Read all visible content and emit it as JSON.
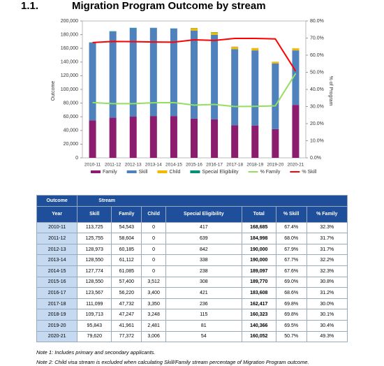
{
  "header": {
    "number": "1.1.",
    "title": "Migration Program Outcome by stream"
  },
  "chart_data": {
    "type": "bar-line",
    "y_label": "Outcome",
    "y2_label": "% of Program",
    "categories": [
      "2010-11",
      "2011-12",
      "2012-13",
      "2013-14",
      "2014-15",
      "2015-16",
      "2016-17",
      "2017-18",
      "2018-19",
      "2019-20",
      "2020-21"
    ],
    "series": [
      {
        "name": "Family",
        "color": "#8c1d6e",
        "kind": "bar",
        "values": [
          54543,
          58604,
          60185,
          61112,
          61085,
          57400,
          56220,
          47732,
          47247,
          41961,
          77372
        ]
      },
      {
        "name": "Skill",
        "color": "#4f81bd",
        "kind": "bar",
        "values": [
          113725,
          125755,
          128973,
          128550,
          127774,
          128550,
          123567,
          111099,
          109713,
          95843,
          79620
        ]
      },
      {
        "name": "Child",
        "color": "#f5b800",
        "kind": "bar",
        "values": [
          0,
          0,
          0,
          0,
          0,
          3512,
          3400,
          3350,
          3248,
          2481,
          3006
        ]
      },
      {
        "name": "Special Eligibility",
        "color": "#00917a",
        "kind": "bar",
        "values": [
          417,
          639,
          842,
          338,
          238,
          308,
          421,
          236,
          115,
          81,
          54
        ]
      },
      {
        "name": "% Family",
        "color": "#92e060",
        "kind": "line",
        "axis": "y2",
        "values": [
          32.3,
          31.7,
          31.7,
          32.2,
          32.3,
          30.8,
          31.2,
          30.0,
          30.1,
          30.4,
          49.3
        ]
      },
      {
        "name": "% Skill",
        "color": "#ff0000",
        "kind": "line",
        "axis": "y2",
        "values": [
          67.4,
          68.0,
          67.9,
          67.7,
          67.6,
          69.0,
          68.6,
          69.8,
          69.8,
          69.5,
          50.7
        ]
      }
    ],
    "ylim": [
      0,
      200000
    ],
    "yticks": [
      0,
      {
        "value": 20000,
        "label": "20,000"
      },
      {
        "value": 40000,
        "label": "40,000"
      },
      {
        "value": 60000,
        "label": "60,000"
      },
      {
        "value": 80000,
        "label": "80,000"
      },
      {
        "value": 100000,
        "label": "100,000"
      },
      {
        "value": 120000,
        "label": "120,000"
      },
      {
        "value": 140000,
        "label": "140,000"
      },
      {
        "value": 160000,
        "label": "160,000"
      },
      {
        "value": 180000,
        "label": "180,000"
      },
      {
        "value": 200000,
        "label": "200,000"
      }
    ],
    "y2lim": [
      0,
      80
    ],
    "y2ticks": [
      {
        "value": 0,
        "label": "0.0%"
      },
      {
        "value": 10,
        "label": "10.0%"
      },
      {
        "value": 20,
        "label": "20.0%"
      },
      {
        "value": 30,
        "label": "30.0%"
      },
      {
        "value": 40,
        "label": "40.0%"
      },
      {
        "value": 50,
        "label": "50.0%"
      },
      {
        "value": 60,
        "label": "60.0%"
      },
      {
        "value": 70,
        "label": "70.0%"
      },
      {
        "value": 80,
        "label": "80.0%"
      }
    ],
    "legend": "bottom"
  },
  "table": {
    "header_top": [
      "Outcome",
      "Stream"
    ],
    "columns": [
      "Year",
      "Skill",
      "Family",
      "Child",
      "Special Eligibility",
      "Total",
      "% Skill",
      "% Family"
    ],
    "rows": [
      [
        "2010-11",
        "113,725",
        "54,543",
        "0",
        "417",
        "168,685",
        "67.4%",
        "32.3%"
      ],
      [
        "2011-12",
        "125,755",
        "58,604",
        "0",
        "639",
        "184,998",
        "68.0%",
        "31.7%"
      ],
      [
        "2012-13",
        "128,973",
        "60,185",
        "0",
        "842",
        "190,000",
        "67.9%",
        "31.7%"
      ],
      [
        "2013-14",
        "128,550",
        "61,112",
        "0",
        "338",
        "190,000",
        "67.7%",
        "32.2%"
      ],
      [
        "2014-15",
        "127,774",
        "61,085",
        "0",
        "238",
        "189,097",
        "67.6%",
        "32.3%"
      ],
      [
        "2015-16",
        "128,550",
        "57,400",
        "3,512",
        "308",
        "189,770",
        "69.0%",
        "30.8%"
      ],
      [
        "2016-17",
        "123,567",
        "56,220",
        "3,400",
        "421",
        "183,608",
        "68.6%",
        "31.2%"
      ],
      [
        "2017-18",
        "111,099",
        "47,732",
        "3,350",
        "236",
        "162,417",
        "69.8%",
        "30.0%"
      ],
      [
        "2018-19",
        "109,713",
        "47,247",
        "3,248",
        "115",
        "160,323",
        "69.8%",
        "30.1%"
      ],
      [
        "2019-20",
        "95,843",
        "41,961",
        "2,481",
        "81",
        "140,366",
        "69.5%",
        "30.4%"
      ],
      [
        "2020-21",
        "79,620",
        "77,372",
        "3,006",
        "54",
        "160,052",
        "50.7%",
        "49.3%"
      ]
    ]
  },
  "notes": [
    "Note 1: Includes primary and secondary applicants.",
    "Note 2: Child visa stream is excluded when calculating Skill/Family stream percentage of Migration Program outcome."
  ]
}
